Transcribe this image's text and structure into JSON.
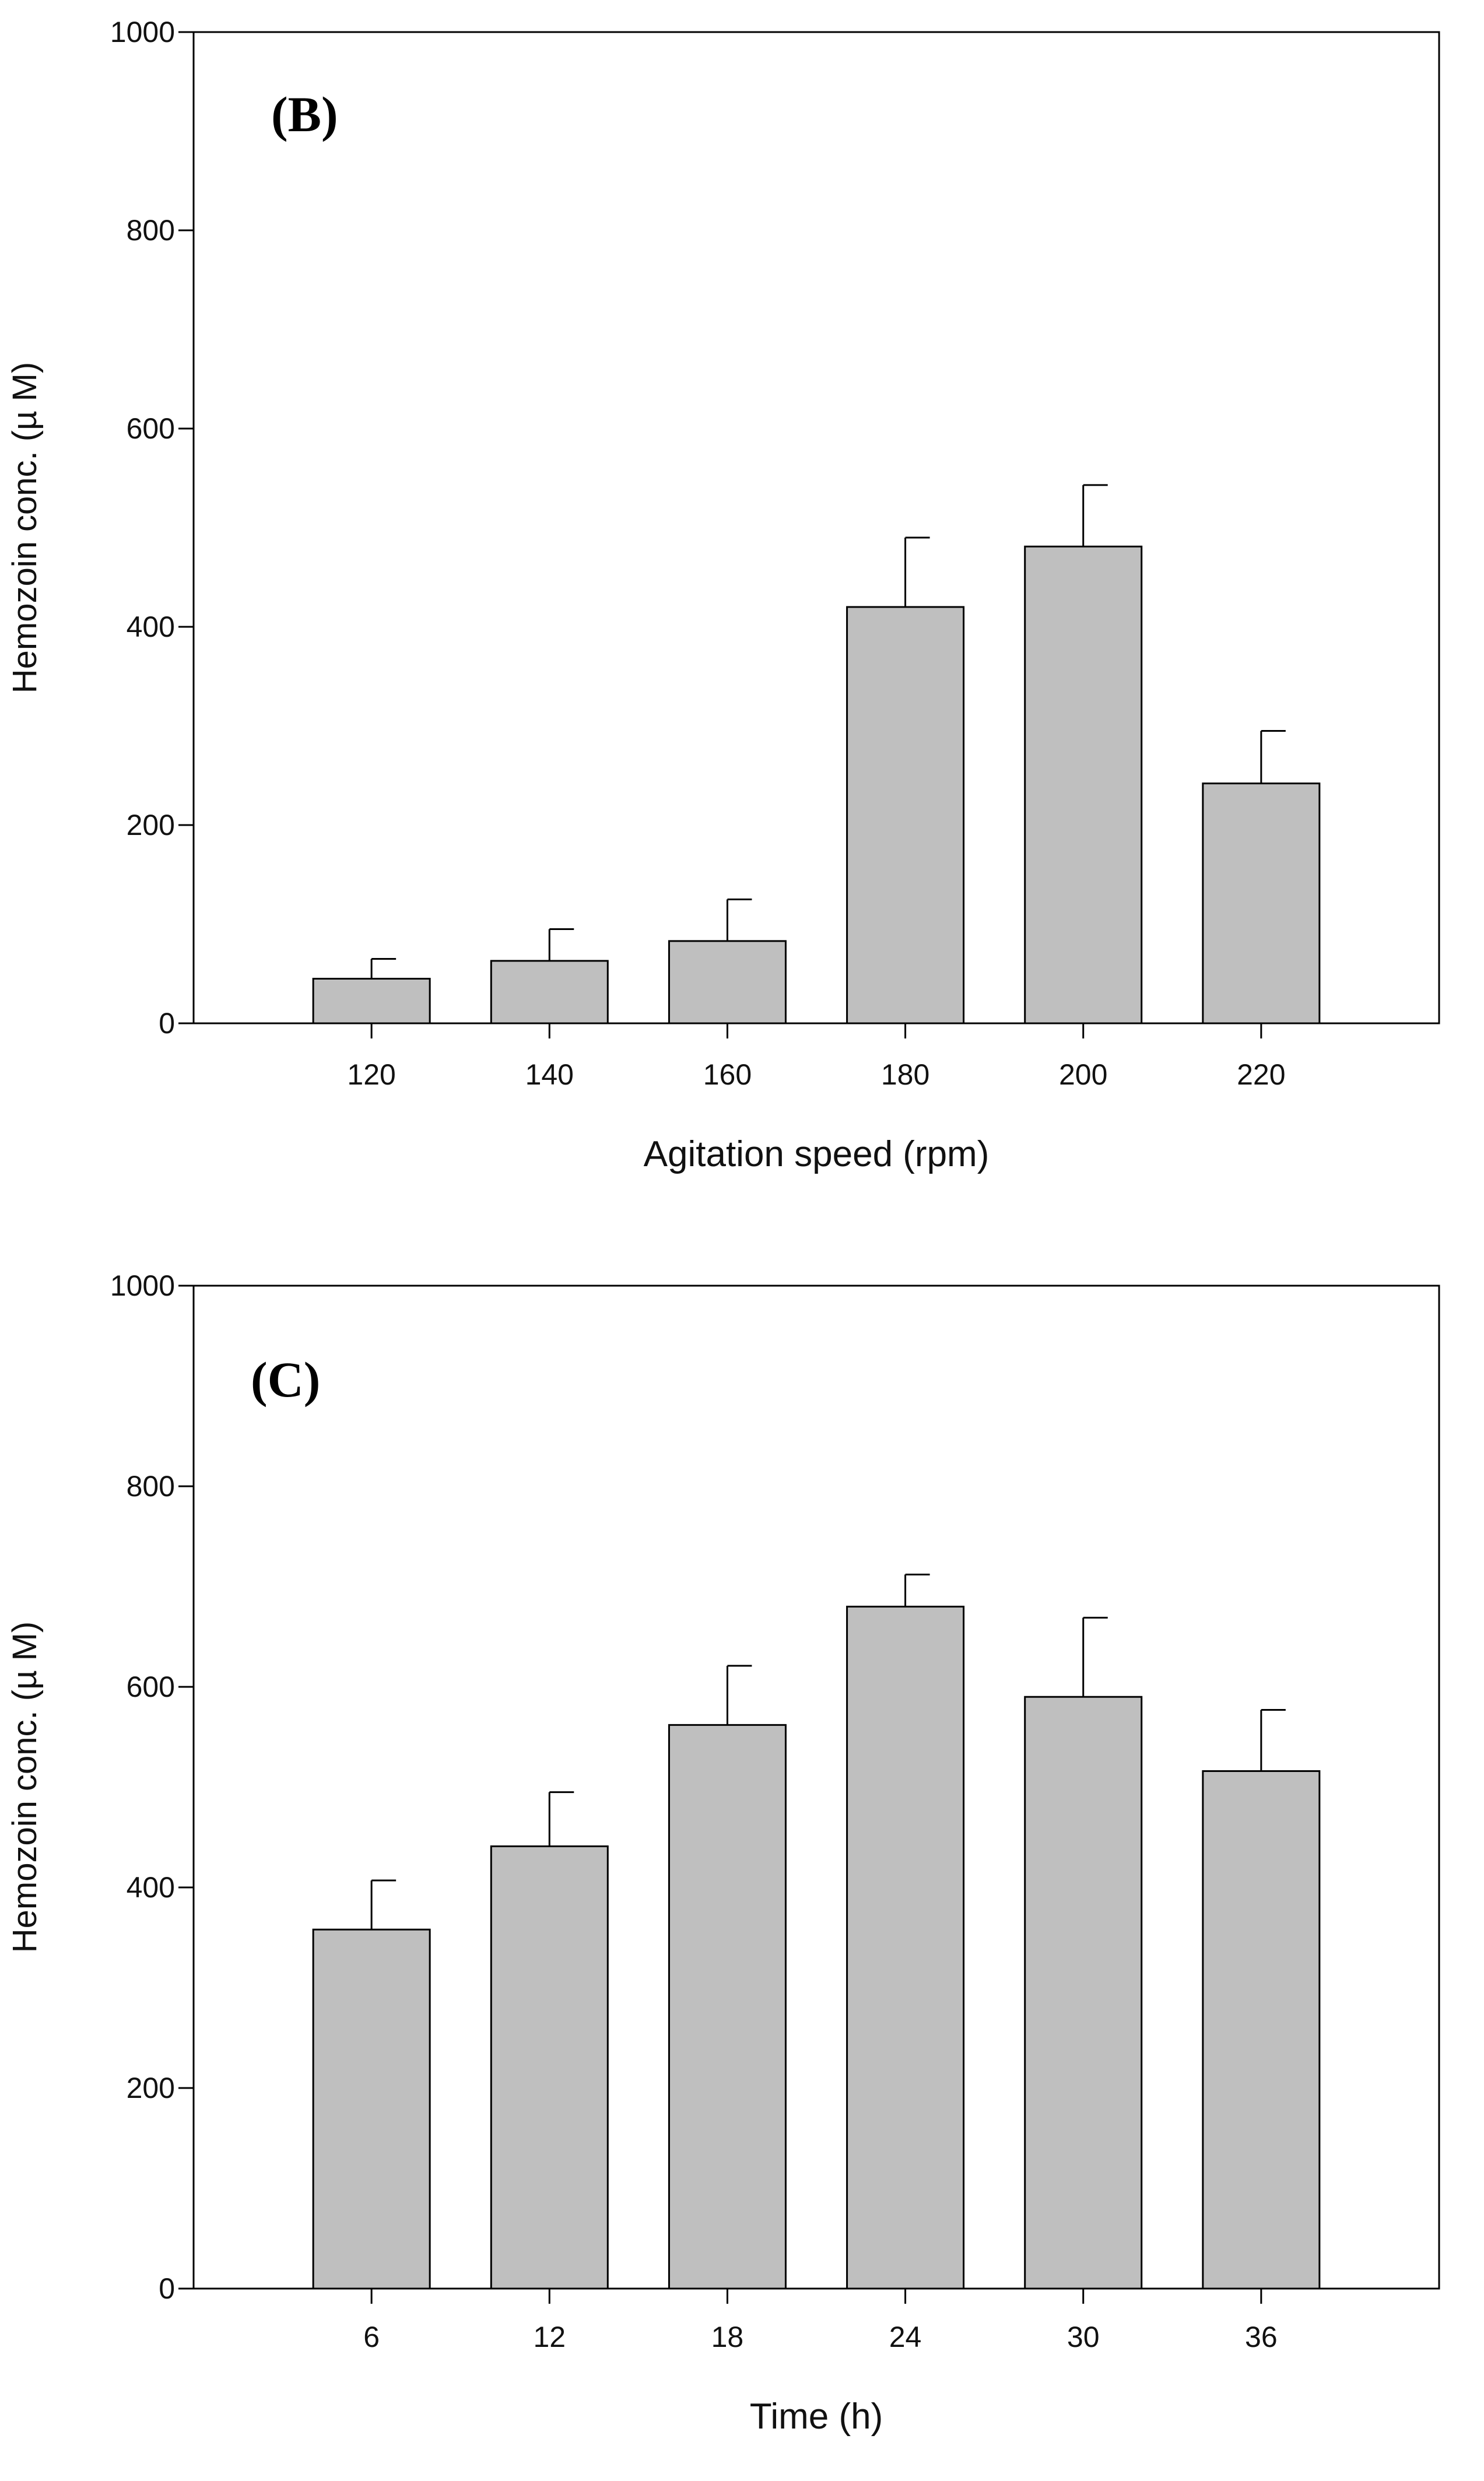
{
  "chart_data": [
    {
      "type": "bar",
      "panel_label": "(B)",
      "categories": [
        "120",
        "140",
        "160",
        "180",
        "200",
        "220"
      ],
      "values": [
        45,
        63,
        83,
        420,
        481,
        242
      ],
      "error_upper": [
        20,
        32,
        42,
        70,
        62,
        53
      ],
      "xlabel": "Agitation speed (rpm)",
      "ylabel": "Hemozoin conc. (µ M)",
      "ylim": [
        0,
        1000
      ],
      "yticks": [
        0,
        200,
        400,
        600,
        800,
        1000
      ],
      "bar_color": "#bfbfbf"
    },
    {
      "type": "bar",
      "panel_label": "(C)",
      "categories": [
        "6",
        "12",
        "18",
        "24",
        "30",
        "36"
      ],
      "values": [
        358,
        441,
        562,
        680,
        590,
        516
      ],
      "error_upper": [
        49,
        54,
        59,
        32,
        79,
        61
      ],
      "xlabel": "Time (h)",
      "ylabel": "Hemozoin conc. (µ M)",
      "ylim": [
        0,
        1000
      ],
      "yticks": [
        0,
        200,
        400,
        600,
        800,
        1000
      ],
      "bar_color": "#bfbfbf"
    }
  ]
}
